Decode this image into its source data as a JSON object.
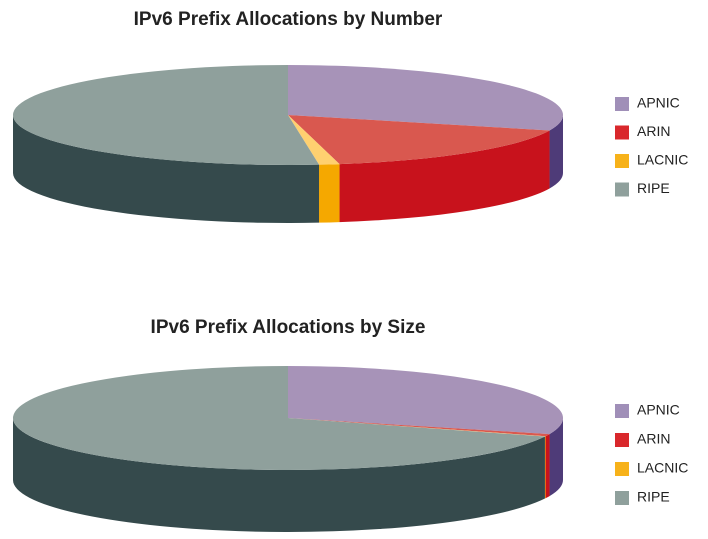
{
  "chart_data": [
    {
      "type": "pie",
      "title": "IPv6 Prefix Allocations by Number",
      "categories": [
        "APNIC",
        "ARIN",
        "LACNIC",
        "RIPE"
      ],
      "values": [
        30,
        17,
        1.2,
        51.8
      ],
      "colors": [
        "#a793b8",
        "#d9584f",
        "#ffd070",
        "#8fa09c"
      ],
      "side_colors": [
        "#4e3b78",
        "#c8121c",
        "#f5a800",
        "#354a4c"
      ],
      "legend_colors": [
        "#a08fb8",
        "#d9282c",
        "#f7b21a",
        "#8fa09c"
      ]
    },
    {
      "type": "pie",
      "title": "IPv6 Prefix Allocations by Size",
      "categories": [
        "APNIC",
        "ARIN",
        "LACNIC",
        "RIPE"
      ],
      "values": [
        30,
        0.7,
        0.1,
        69.2
      ],
      "colors": [
        "#a793b8",
        "#d9584f",
        "#ffd070",
        "#8fa09c"
      ],
      "side_colors": [
        "#4e3b78",
        "#c8121c",
        "#f5a800",
        "#354a4c"
      ],
      "legend_colors": [
        "#a08fb8",
        "#d9282c",
        "#f7b21a",
        "#8fa09c"
      ]
    }
  ]
}
